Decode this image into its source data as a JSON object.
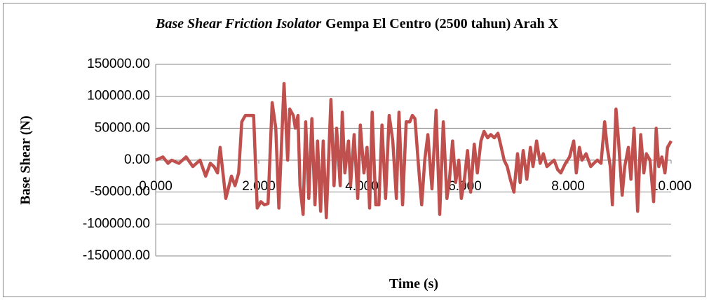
{
  "chart_data": {
    "type": "line",
    "title": [
      "Base Shear Friction Isolator",
      "Gempa El Centro (2500 tahun) Arah X"
    ],
    "x_label": "Time (s)",
    "y_label": "Base Shear (N)",
    "xlim": [
      0,
      10
    ],
    "ylim": [
      -150000,
      150000
    ],
    "xticks": [
      {
        "value": 0,
        "label": "0.000"
      },
      {
        "value": 2,
        "label": "2.000"
      },
      {
        "value": 4,
        "label": "4.000"
      },
      {
        "value": 6,
        "label": "6.000"
      },
      {
        "value": 8,
        "label": "8.000"
      },
      {
        "value": 10,
        "label": "10.000"
      }
    ],
    "yticks": [
      {
        "value": -150000,
        "label": "-150000.00"
      },
      {
        "value": -100000,
        "label": "-100000.00"
      },
      {
        "value": -50000,
        "label": "-50000.00"
      },
      {
        "value": 0,
        "label": "0.00"
      },
      {
        "value": 50000,
        "label": "50000.00"
      },
      {
        "value": 100000,
        "label": "100000.00"
      },
      {
        "value": 150000,
        "label": "150000.00"
      }
    ],
    "grid": true,
    "x": [
      0.0,
      0.14,
      0.24,
      0.31,
      0.45,
      0.59,
      0.72,
      0.86,
      0.97,
      1.06,
      1.13,
      1.2,
      1.25,
      1.36,
      1.47,
      1.54,
      1.61,
      1.67,
      1.74,
      1.9,
      1.97,
      2.04,
      2.11,
      2.18,
      2.26,
      2.33,
      2.39,
      2.49,
      2.56,
      2.6,
      2.67,
      2.71,
      2.76,
      2.8,
      2.86,
      2.91,
      2.97,
      3.03,
      3.09,
      3.14,
      3.2,
      3.25,
      3.31,
      3.4,
      3.46,
      3.51,
      3.58,
      3.62,
      3.67,
      3.74,
      3.78,
      3.85,
      3.92,
      3.97,
      4.04,
      4.1,
      4.15,
      4.2,
      4.27,
      4.33,
      4.39,
      4.46,
      4.53,
      4.6,
      4.67,
      4.72,
      4.79,
      4.86,
      4.93,
      4.98,
      5.03,
      5.1,
      5.16,
      5.22,
      5.28,
      5.36,
      5.44,
      5.51,
      5.58,
      5.65,
      5.7,
      5.76,
      5.82,
      5.88,
      5.93,
      5.99,
      6.05,
      6.11,
      6.18,
      6.24,
      6.31,
      6.37,
      6.44,
      6.5,
      6.57,
      6.64,
      6.69,
      6.76,
      6.82,
      6.88,
      6.95,
      7.02,
      7.07,
      7.13,
      7.2,
      7.27,
      7.32,
      7.39,
      7.46,
      7.52,
      7.59,
      7.66,
      7.73,
      7.8,
      7.86,
      7.95,
      8.03,
      8.11,
      8.16,
      8.22,
      8.27,
      8.35,
      8.44,
      8.5,
      8.57,
      8.64,
      8.71,
      8.76,
      8.82,
      8.86,
      8.93,
      8.98,
      9.05,
      9.1,
      9.17,
      9.22,
      9.28,
      9.35,
      9.41,
      9.47,
      9.52,
      9.59,
      9.66,
      9.71,
      9.76,
      9.82,
      9.88,
      9.93,
      10.0
    ],
    "series": [
      {
        "color": "#c0504d",
        "values": [
          0,
          5000,
          -5000,
          0,
          -5000,
          5000,
          -10000,
          0,
          -25000,
          -5000,
          -10000,
          -20000,
          20000,
          -60000,
          -25000,
          -40000,
          -20000,
          60000,
          70000,
          70000,
          -75000,
          -65000,
          -70000,
          -68000,
          90000,
          50000,
          -75000,
          120000,
          0,
          80000,
          70000,
          50000,
          70000,
          -40000,
          -85000,
          60000,
          -60000,
          65000,
          -70000,
          30000,
          -80000,
          30000,
          -90000,
          95000,
          -40000,
          50000,
          -40000,
          75000,
          -20000,
          30000,
          -40000,
          40000,
          -60000,
          55000,
          -20000,
          20000,
          -75000,
          75000,
          -70000,
          -70000,
          55000,
          -60000,
          70000,
          30000,
          -60000,
          75000,
          -70000,
          60000,
          60000,
          70000,
          65000,
          -10000,
          -70000,
          0,
          40000,
          -45000,
          78000,
          -85000,
          60000,
          -60000,
          -30000,
          30000,
          -35000,
          0,
          -60000,
          -30000,
          15000,
          -50000,
          25000,
          -20000,
          30000,
          45000,
          35000,
          40000,
          35000,
          42000,
          25000,
          0,
          -10000,
          -30000,
          -50000,
          10000,
          -35000,
          15000,
          -30000,
          20000,
          -10000,
          30000,
          -5000,
          10000,
          -10000,
          -5000,
          0,
          -15000,
          -20000,
          -5000,
          5000,
          30000,
          -20000,
          20000,
          0,
          10000,
          -10000,
          -5000,
          0,
          -5000,
          60000,
          20000,
          -10000,
          -70000,
          80000,
          30000,
          -55000,
          -10000,
          20000,
          -30000,
          50000,
          -80000,
          40000,
          -20000,
          10000,
          0,
          -65000,
          50000,
          -10000,
          5000,
          -20000,
          20000,
          30000
        ]
      }
    ]
  }
}
